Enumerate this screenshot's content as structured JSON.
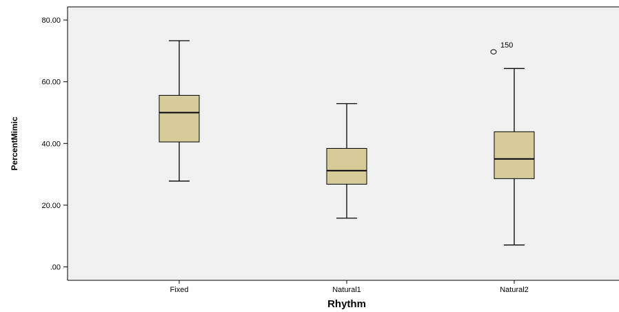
{
  "chart_data": {
    "type": "box",
    "xlabel": "Rhythm",
    "ylabel": "PercentMimic",
    "ylim": [
      -4,
      84
    ],
    "yticks": [
      0,
      20,
      40,
      60,
      80
    ],
    "ytick_labels": [
      ".00",
      "20.00",
      "40.00",
      "60.00",
      "80.00"
    ],
    "grid": false,
    "categories": [
      "Fixed",
      "Natural1",
      "Natural2"
    ],
    "boxes": [
      {
        "category": "Fixed",
        "min": 27.8,
        "q1": 40.5,
        "median": 50.0,
        "q3": 55.6,
        "max": 73.3,
        "outliers": []
      },
      {
        "category": "Natural1",
        "min": 15.8,
        "q1": 26.8,
        "median": 31.2,
        "q3": 38.4,
        "max": 52.9,
        "outliers": []
      },
      {
        "category": "Natural2",
        "min": 7.1,
        "q1": 28.6,
        "median": 35.0,
        "q3": 43.8,
        "max": 64.3,
        "outliers": [
          {
            "value": 69.7,
            "label": "150"
          }
        ]
      }
    ],
    "colors": {
      "plot_background": "#F0F0F0",
      "box_fill": "#D5CC9A",
      "box_stroke": "#000000"
    }
  }
}
